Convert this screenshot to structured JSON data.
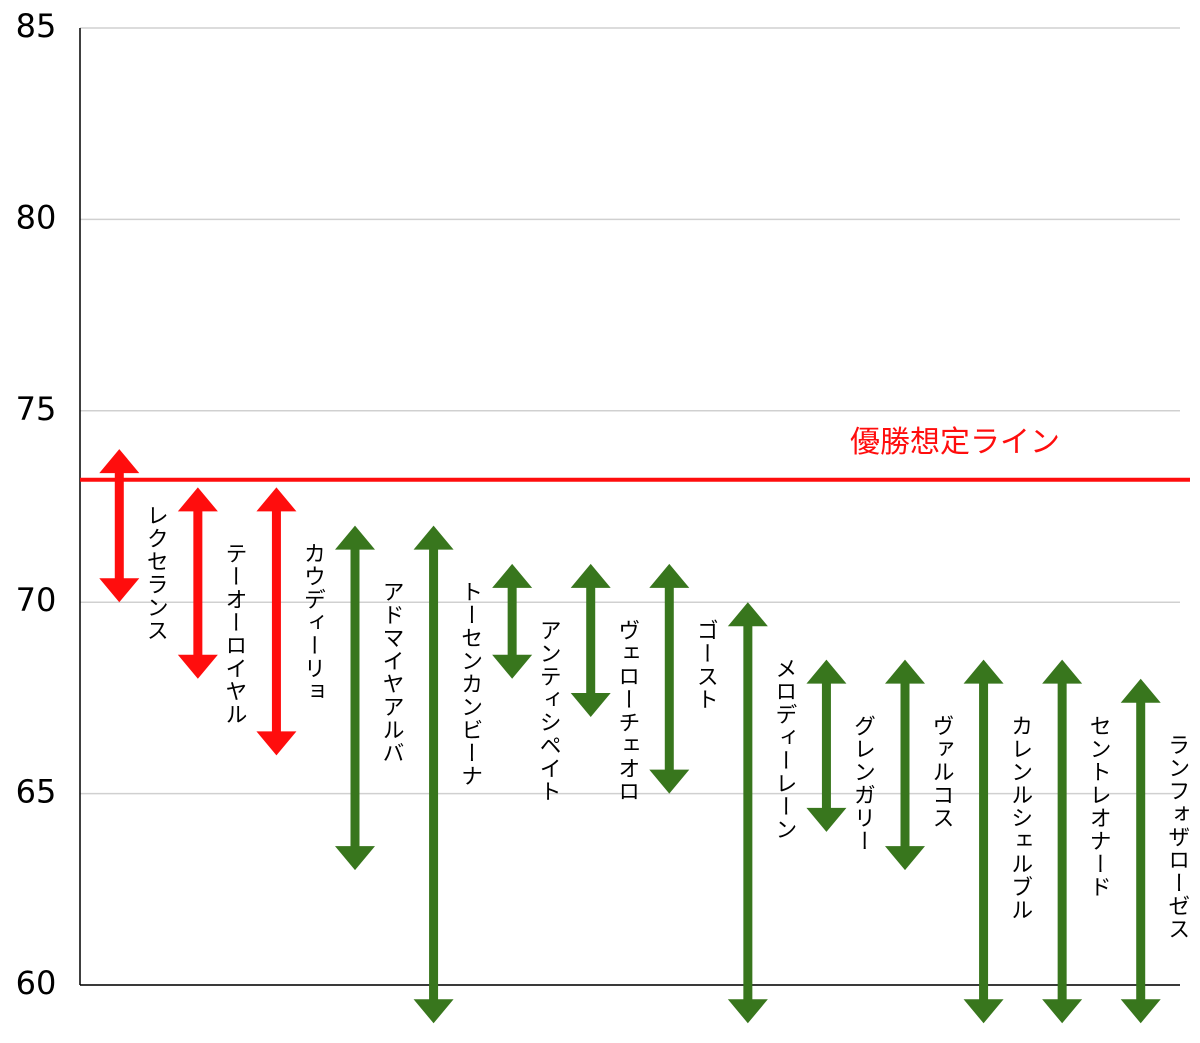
{
  "chart_data": {
    "type": "range-arrow",
    "categories": [
      "レクセランス",
      "テーオーロイヤル",
      "カウディーリョ",
      "アドマイヤアルバ",
      "トーセンカンビーナ",
      "アンティシペイト",
      "ヴェローチェオロ",
      "ゴースト",
      "メロディーレーン",
      "グレンガリー",
      "ヴァルコス",
      "カレンルシェルブル",
      "セントレオナード",
      "ランフォザローゼス"
    ],
    "high": [
      74,
      73,
      73,
      72,
      72,
      71,
      71,
      71,
      70,
      68.5,
      68.5,
      68.5,
      68.5,
      68
    ],
    "low": [
      70,
      68,
      66,
      63,
      59,
      68,
      67,
      65,
      59,
      64,
      63,
      59,
      59,
      59
    ],
    "colors": [
      "#ff0d0d",
      "#ff0d0d",
      "#ff0d0d",
      "#38761d",
      "#38761d",
      "#38761d",
      "#38761d",
      "#38761d",
      "#38761d",
      "#38761d",
      "#38761d",
      "#38761d",
      "#38761d",
      "#38761d"
    ],
    "threshold": {
      "value": 73.2,
      "label": "優勝想定ライン",
      "color": "#ff0d0d"
    },
    "ylim": [
      60,
      85
    ],
    "yticks": [
      60,
      65,
      70,
      75,
      80,
      85
    ],
    "grid": true
  }
}
